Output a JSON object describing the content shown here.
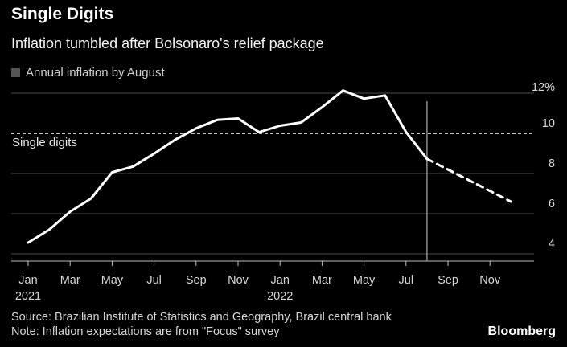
{
  "header": {
    "title": "Single Digits",
    "subtitle": "Inflation tumbled after Bolsonaro's relief package"
  },
  "legend": {
    "label": "Annual inflation by August",
    "color": "#555555"
  },
  "footer": {
    "source": "Source: Brazilian Institute of Statistics and Geography, Brazil central bank",
    "note": "Note: Inflation expectations are from \"Focus\" survey",
    "brand": "Bloomberg"
  },
  "chart_data": {
    "type": "line",
    "title": "Single Digits",
    "subtitle": "Inflation tumbled after Bolsonaro's relief package",
    "xlabel": "",
    "ylabel": "",
    "ylim": [
      3.4,
      12.6
    ],
    "y_ticks": [
      4,
      6,
      8,
      10,
      12
    ],
    "y_tick_labels": [
      "4",
      "6",
      "8",
      "10",
      "12%"
    ],
    "x_tick_labels": [
      "Jan\n2021",
      "Mar",
      "May",
      "Jul",
      "Sep",
      "Nov",
      "Jan\n2022",
      "Mar",
      "May",
      "Jul",
      "Sep",
      "Nov"
    ],
    "grid": true,
    "line_color": "#ffffff",
    "reference_line": {
      "y": 10,
      "label": "Single digits",
      "style": "dashed"
    },
    "vertical_marker": {
      "x": "2022-08",
      "color": "#8c8c8c"
    },
    "series": [
      {
        "style": "solid",
        "x": [
          "2021-01",
          "2021-02",
          "2021-03",
          "2021-04",
          "2021-05",
          "2021-06",
          "2021-07",
          "2021-08",
          "2021-09",
          "2021-10",
          "2021-11",
          "2021-12",
          "2022-01",
          "2022-02",
          "2022-03",
          "2022-04",
          "2022-05",
          "2022-06",
          "2022-07",
          "2022-08"
        ],
        "values": [
          4.56,
          5.2,
          6.1,
          6.76,
          8.06,
          8.35,
          8.99,
          9.68,
          10.25,
          10.67,
          10.74,
          10.06,
          10.38,
          10.54,
          11.3,
          12.13,
          11.73,
          11.89,
          10.07,
          8.73
        ]
      },
      {
        "style": "dashed",
        "x": [
          "2022-08",
          "2022-12"
        ],
        "values": [
          8.73,
          6.6
        ]
      }
    ]
  }
}
